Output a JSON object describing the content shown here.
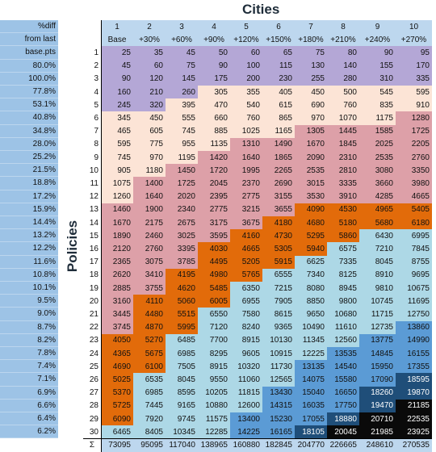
{
  "title": "Cities",
  "ylabel": "Policies",
  "pct_header": [
    "%diff",
    "from last",
    "base.pts"
  ],
  "pct_values": [
    "80.0%",
    "100.0%",
    "77.8%",
    "53.1%",
    "40.8%",
    "34.8%",
    "28.0%",
    "25.2%",
    "21.5%",
    "18.8%",
    "17.2%",
    "15.9%",
    "14.4%",
    "13.2%",
    "12.2%",
    "11.6%",
    "10.8%",
    "10.1%",
    "9.5%",
    "9.0%",
    "8.7%",
    "8.2%",
    "7.8%",
    "7.4%",
    "7.1%",
    "6.9%",
    "6.6%",
    "6.4%",
    "6.2%"
  ],
  "sum_label": "Σ",
  "colors": {
    "purple": "#b4a7d6",
    "cream": "#fce4d6",
    "pink": "#dda0a8",
    "peach": "#f8cbad",
    "orange": "#e26b0a",
    "lightblue": "#add8e6",
    "midblue": "#5b9bd5",
    "darkblue": "#1f4e79",
    "black": "#0a0a0a"
  },
  "chart_data": {
    "type": "table",
    "title": "Cities",
    "ylabel": "Policies",
    "columns": [
      "1",
      "2",
      "3",
      "4",
      "5",
      "6",
      "7",
      "8",
      "9",
      "10"
    ],
    "column_labels": [
      "Base",
      "+30%",
      "+60%",
      "+90%",
      "+120%",
      "+150%",
      "+180%",
      "+210%",
      "+240%",
      "+270%"
    ],
    "rows": [
      "1",
      "2",
      "3",
      "4",
      "5",
      "6",
      "7",
      "8",
      "9",
      "10",
      "11",
      "12",
      "13",
      "14",
      "15",
      "16",
      "17",
      "18",
      "19",
      "20",
      "21",
      "22",
      "23",
      "24",
      "25",
      "26",
      "27",
      "28",
      "29",
      "30"
    ],
    "values": [
      [
        25,
        35,
        45,
        50,
        60,
        65,
        75,
        80,
        90,
        95
      ],
      [
        45,
        60,
        75,
        90,
        100,
        115,
        130,
        140,
        155,
        170
      ],
      [
        90,
        120,
        145,
        175,
        200,
        230,
        255,
        280,
        310,
        335
      ],
      [
        160,
        210,
        260,
        305,
        355,
        405,
        450,
        500,
        545,
        595
      ],
      [
        245,
        320,
        395,
        470,
        540,
        615,
        690,
        760,
        835,
        910
      ],
      [
        345,
        450,
        555,
        660,
        760,
        865,
        970,
        1070,
        1175,
        1280
      ],
      [
        465,
        605,
        745,
        885,
        1025,
        1165,
        1305,
        1445,
        1585,
        1725
      ],
      [
        595,
        775,
        955,
        1135,
        1310,
        1490,
        1670,
        1845,
        2025,
        2205
      ],
      [
        745,
        970,
        1195,
        1420,
        1640,
        1865,
        2090,
        2310,
        2535,
        2760
      ],
      [
        905,
        1180,
        1450,
        1720,
        1995,
        2265,
        2535,
        2810,
        3080,
        3350
      ],
      [
        1075,
        1400,
        1725,
        2045,
        2370,
        2690,
        3015,
        3335,
        3660,
        3980
      ],
      [
        1260,
        1640,
        2020,
        2395,
        2775,
        3155,
        3530,
        3910,
        4285,
        4665
      ],
      [
        1460,
        1900,
        2340,
        2775,
        3215,
        3655,
        4090,
        4530,
        4965,
        5405
      ],
      [
        1670,
        2175,
        2675,
        3175,
        3675,
        4180,
        4680,
        5180,
        5680,
        6180
      ],
      [
        1890,
        2460,
        3025,
        3595,
        4160,
        4730,
        5295,
        5860,
        6430,
        6995
      ],
      [
        2120,
        2760,
        3395,
        4030,
        4665,
        5305,
        5940,
        6575,
        7210,
        7845
      ],
      [
        2365,
        3075,
        3785,
        4495,
        5205,
        5915,
        6625,
        7335,
        8045,
        8755
      ],
      [
        2620,
        3410,
        4195,
        4980,
        5765,
        6555,
        7340,
        8125,
        8910,
        9695
      ],
      [
        2885,
        3755,
        4620,
        5485,
        6350,
        7215,
        8080,
        8945,
        9810,
        10675
      ],
      [
        3160,
        4110,
        5060,
        6005,
        6955,
        7905,
        8850,
        9800,
        10745,
        11695
      ],
      [
        3445,
        4480,
        5515,
        6550,
        7580,
        8615,
        9650,
        10680,
        11715,
        12750
      ],
      [
        3745,
        4870,
        5995,
        7120,
        8240,
        9365,
        10490,
        11610,
        12735,
        13860
      ],
      [
        4050,
        5270,
        6485,
        7700,
        8915,
        10130,
        11345,
        12560,
        13775,
        14990
      ],
      [
        4365,
        5675,
        6985,
        8295,
        9605,
        10915,
        12225,
        13535,
        14845,
        16155
      ],
      [
        4690,
        6100,
        7505,
        8915,
        10320,
        11730,
        13135,
        14540,
        15950,
        17355
      ],
      [
        5025,
        6535,
        8045,
        9550,
        11060,
        12565,
        14075,
        15580,
        17090,
        18595
      ],
      [
        5370,
        6985,
        8595,
        10205,
        11815,
        13430,
        15040,
        16650,
        18260,
        19870
      ],
      [
        5725,
        7445,
        9165,
        10880,
        12600,
        14315,
        16035,
        17750,
        19470,
        21185
      ],
      [
        6090,
        7920,
        9745,
        11575,
        13400,
        15230,
        17055,
        18880,
        20710,
        22535
      ],
      [
        6465,
        8405,
        10345,
        12285,
        14225,
        16165,
        18105,
        20045,
        21985,
        23925
      ]
    ],
    "sums": [
      73095,
      95095,
      117040,
      138965,
      160880,
      182845,
      204770,
      226665,
      248610,
      270535
    ]
  }
}
